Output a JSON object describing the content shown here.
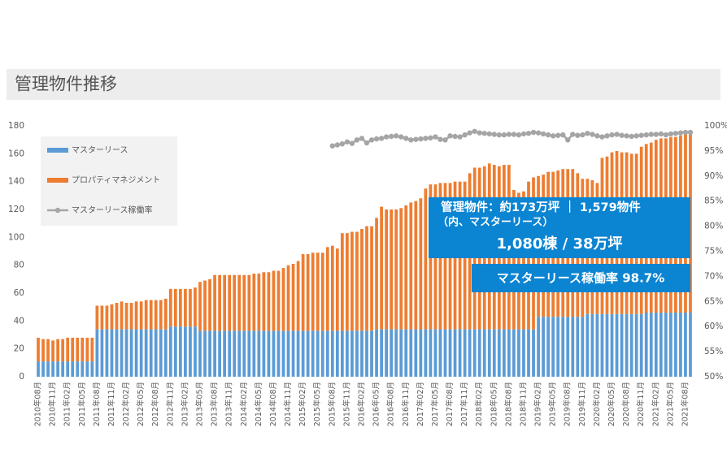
{
  "chart_data": {
    "type": "bar",
    "title": "管理物件推移",
    "categories": [
      "2010年08月",
      null,
      null,
      "2010年11月",
      null,
      null,
      "2011年02月",
      null,
      null,
      "2011年05月",
      null,
      null,
      "2011年08月",
      null,
      null,
      "2011年11月",
      null,
      null,
      "2012年02月",
      null,
      null,
      "2012年05月",
      null,
      null,
      "2012年08月",
      null,
      null,
      "2012年11月",
      null,
      null,
      "2013年02月",
      null,
      null,
      "2013年05月",
      null,
      null,
      "2013年08月",
      null,
      null,
      "2013年11月",
      null,
      null,
      "2014年02月",
      null,
      null,
      "2014年05月",
      null,
      null,
      "2014年08月",
      null,
      null,
      "2014年11月",
      null,
      null,
      "2015年02月",
      null,
      null,
      "2015年05月",
      null,
      null,
      "2015年08月",
      null,
      null,
      "2015年11月",
      null,
      null,
      "2016年02月",
      null,
      null,
      "2016年05月",
      null,
      null,
      "2016年08月",
      null,
      null,
      "2016年11月",
      null,
      null,
      "2017年02月",
      null,
      null,
      "2017年05月",
      null,
      null,
      "2017年08月",
      null,
      null,
      "2017年11月",
      null,
      null,
      "2018年02月",
      null,
      null,
      "2018年05月",
      null,
      null,
      "2018年08月",
      null,
      null,
      "2018年11月",
      null,
      null,
      "2019年02月",
      null,
      null,
      "2019年05月",
      null,
      null,
      "2019年08月",
      null,
      null,
      "2019年11月",
      null,
      null,
      "2020年02月",
      null,
      null,
      "2020年05月",
      null,
      null,
      "2020年08月",
      null,
      null,
      "2020年11月",
      null,
      null,
      "2021年02月",
      null,
      null,
      "2021年05月",
      null,
      null,
      "2021年08月",
      null
    ],
    "series": [
      {
        "name": "マスターリース",
        "color": "#5b9bd5",
        "values": [
          11,
          11,
          11,
          11,
          11,
          11,
          11,
          11,
          11,
          11,
          11,
          11,
          34,
          34,
          34,
          34,
          34,
          34,
          34,
          34,
          34,
          34,
          34,
          34,
          34,
          34,
          34,
          36,
          36,
          36,
          36,
          36,
          36,
          33,
          33,
          33,
          33,
          33,
          33,
          33,
          33,
          33,
          33,
          33,
          33,
          33,
          33,
          33,
          33,
          33,
          33,
          33,
          33,
          33,
          33,
          33,
          33,
          33,
          33,
          33,
          33,
          33,
          33,
          33,
          33,
          33,
          33,
          33,
          33,
          34,
          34,
          34,
          34,
          34,
          34,
          34,
          34,
          34,
          34,
          34,
          34,
          34,
          34,
          34,
          34,
          34,
          34,
          34,
          34,
          34,
          34,
          34,
          34,
          34,
          34,
          34,
          34,
          34,
          34,
          34,
          34,
          34,
          43,
          43,
          43,
          43,
          43,
          43,
          43,
          43,
          43,
          43,
          45,
          45,
          45,
          45,
          45,
          45,
          45,
          45,
          45,
          45,
          45,
          45,
          46,
          46,
          46,
          46,
          46,
          46,
          46,
          46,
          46,
          46
        ]
      },
      {
        "name": "プロパティマネジメント",
        "color": "#ed7d31",
        "values": [
          17,
          16,
          16,
          15,
          16,
          16,
          17,
          17,
          17,
          17,
          17,
          17,
          17,
          17,
          17,
          18,
          19,
          20,
          19,
          19,
          20,
          20,
          21,
          21,
          21,
          21,
          22,
          27,
          27,
          27,
          27,
          27,
          28,
          35,
          36,
          37,
          40,
          40,
          40,
          40,
          40,
          40,
          40,
          40,
          41,
          41,
          42,
          42,
          43,
          43,
          45,
          47,
          48,
          50,
          55,
          55,
          56,
          56,
          56,
          60,
          61,
          59,
          70,
          70,
          71,
          71,
          73,
          75,
          75,
          80,
          88,
          86,
          86,
          86,
          87,
          89,
          91,
          92,
          94,
          101,
          104,
          104,
          105,
          105,
          105,
          106,
          106,
          106,
          112,
          116,
          116,
          117,
          119,
          118,
          117,
          118,
          118,
          100,
          98,
          99,
          106,
          109,
          101,
          102,
          104,
          104,
          105,
          106,
          106,
          106,
          103,
          99,
          97,
          96,
          94,
          112,
          113,
          116,
          117,
          116,
          116,
          115,
          115,
          120,
          121,
          122,
          124,
          125,
          125,
          126,
          126,
          127,
          128,
          129
        ]
      },
      {
        "name": "マスターリース稼働率",
        "color": "#a5a5a5",
        "axis": "y2",
        "values": [
          null,
          null,
          null,
          null,
          null,
          null,
          null,
          null,
          null,
          null,
          null,
          null,
          null,
          null,
          null,
          null,
          null,
          null,
          null,
          null,
          null,
          null,
          null,
          null,
          null,
          null,
          null,
          null,
          null,
          null,
          null,
          null,
          null,
          null,
          null,
          null,
          null,
          null,
          null,
          null,
          null,
          null,
          null,
          null,
          null,
          null,
          null,
          null,
          null,
          null,
          null,
          null,
          null,
          null,
          null,
          null,
          null,
          null,
          null,
          null,
          96.0,
          96.2,
          96.4,
          96.8,
          96.5,
          97.2,
          97.5,
          96.6,
          97.2,
          97.4,
          97.5,
          97.8,
          97.9,
          98.0,
          97.8,
          97.5,
          97.2,
          97.3,
          97.4,
          97.5,
          97.6,
          97.8,
          97.3,
          97.2,
          98.0,
          97.9,
          97.8,
          98.2,
          98.6,
          98.9,
          98.6,
          98.5,
          98.4,
          98.3,
          98.2,
          98.2,
          98.3,
          98.3,
          98.2,
          98.4,
          98.5,
          98.7,
          98.6,
          98.4,
          98.2,
          98.0,
          98.1,
          98.2,
          97.2,
          98.3,
          98.1,
          98.2,
          98.5,
          98.3,
          98.0,
          97.8,
          98.0,
          98.2,
          98.3,
          98.1,
          98.0,
          97.9,
          98.0,
          98.1,
          98.2,
          98.3,
          98.3,
          98.4,
          98.2,
          98.4,
          98.5,
          98.6,
          98.7,
          98.7
        ]
      }
    ],
    "ylim": [
      0,
      180
    ],
    "yticks": [
      0,
      20,
      40,
      60,
      80,
      100,
      120,
      140,
      160,
      180
    ],
    "y2lim": [
      50,
      100
    ],
    "y2ticks": [
      {
        "value": 50,
        "label": "50%"
      },
      {
        "value": 55,
        "label": "55%"
      },
      {
        "value": 60,
        "label": "60%"
      },
      {
        "value": 65,
        "label": "65%"
      },
      {
        "value": 70,
        "label": "70%"
      },
      {
        "value": 75,
        "label": "75%"
      },
      {
        "value": 80,
        "label": "80%"
      },
      {
        "value": 85,
        "label": "85%"
      },
      {
        "value": 90,
        "label": "90%"
      },
      {
        "value": 95,
        "label": "95%"
      },
      {
        "value": 100,
        "label": "100%"
      }
    ],
    "annotations": [
      "管理物件：約173万坪 ｜ 1,579物件",
      "（内、マスターリース）",
      "1,080棟 / 38万坪",
      "マスターリース稼働率 98.7%"
    ],
    "legend": "upper left"
  }
}
